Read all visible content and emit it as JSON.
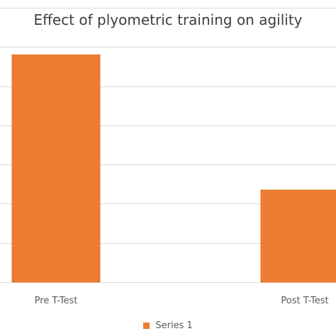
{
  "chart_data": {
    "type": "bar",
    "title": "Effect of plyometric training on agility",
    "categories": [
      "Pre T-Test",
      "Post T-Test"
    ],
    "series": [
      {
        "name": "Series 1",
        "values": [
          11.6,
          4.7
        ],
        "color": "#ED7D31"
      }
    ],
    "ylim": [
      0,
      14
    ],
    "y_gridline_step": 2,
    "grid": true,
    "legend_position": "bottom",
    "gridline_color": "#D9D9D9"
  }
}
